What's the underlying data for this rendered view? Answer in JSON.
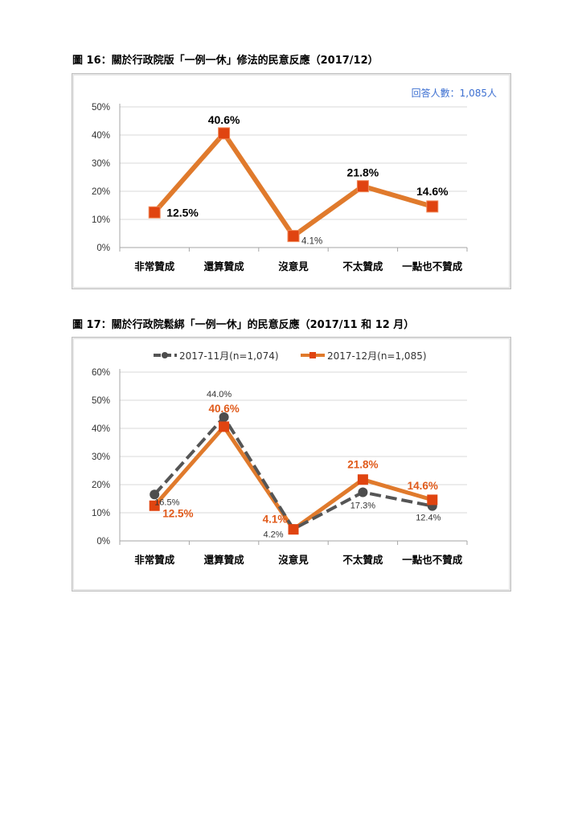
{
  "figures": {
    "fig16": {
      "caption": "圖 16：關於行政院版「一例一休」修法的民意反應（2017/12）",
      "note": "回答人數：1,085人"
    },
    "fig17": {
      "caption": "圖 17：關於行政院鬆綁「一例一休」的民意反應（2017/11 和 12 月）"
    }
  },
  "colors": {
    "orange_line": "#e07a2c",
    "orange_marker": "#e04410",
    "gray_line": "#555555",
    "gray_marker": "#4d4d4d",
    "grid": "#d9d9d9",
    "note_blue": "#3c6fd1"
  },
  "chart_data": [
    {
      "type": "line",
      "title": "",
      "categories": [
        "非常贊成",
        "還算贊成",
        "沒意見",
        "不太贊成",
        "一點也不贊成"
      ],
      "ylim": [
        0,
        50
      ],
      "yticks": [
        "0%",
        "10%",
        "20%",
        "30%",
        "40%",
        "50%"
      ],
      "grid": true,
      "series": [
        {
          "values": [
            12.5,
            40.6,
            4.1,
            21.8,
            14.6
          ],
          "labels": [
            "12.5%",
            "40.6%",
            "4.1%",
            "21.8%",
            "14.6%"
          ]
        }
      ]
    },
    {
      "type": "line",
      "title": "",
      "categories": [
        "非常贊成",
        "還算贊成",
        "沒意見",
        "不太贊成",
        "一點也不贊成"
      ],
      "ylim": [
        0,
        60
      ],
      "yticks": [
        "0%",
        "10%",
        "20%",
        "30%",
        "40%",
        "50%",
        "60%"
      ],
      "grid": true,
      "legend": "top",
      "series": [
        {
          "name": "2017-11月(n=1,074)",
          "values": [
            16.5,
            44.0,
            4.2,
            17.3,
            12.4
          ],
          "labels": [
            "16.5%",
            "44.0%",
            "4.2%",
            "17.3%",
            "12.4%"
          ]
        },
        {
          "name": "2017-12月(n=1,085)",
          "values": [
            12.5,
            40.6,
            4.1,
            21.8,
            14.6
          ],
          "labels": [
            "12.5%",
            "40.6%",
            "4.1%",
            "21.8%",
            "14.6%"
          ]
        }
      ]
    }
  ]
}
